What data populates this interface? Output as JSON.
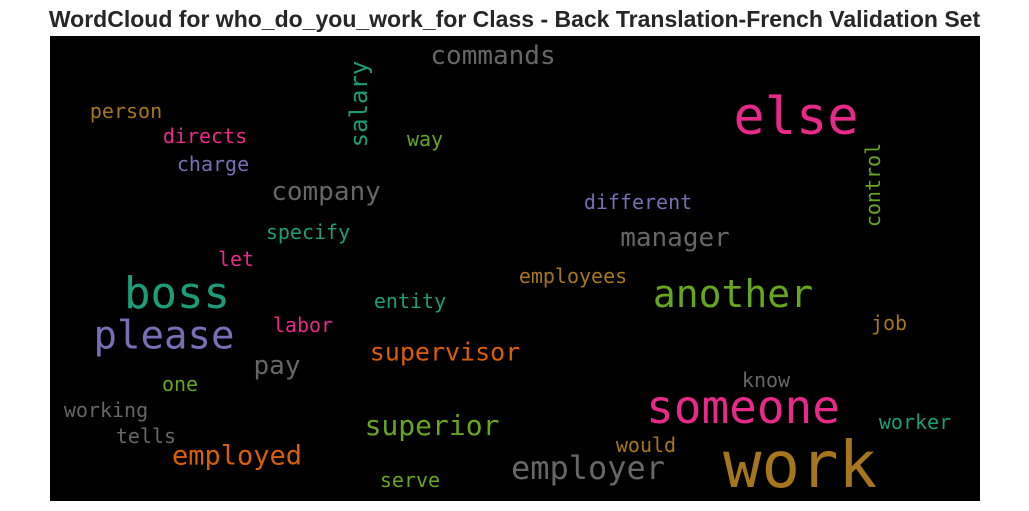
{
  "title": "WordCloud for who_do_you_work_for Class - Back Translation-French Validation Set",
  "colors": {
    "gray": "#666666",
    "pink": "#e7298a",
    "green": "#66a61e",
    "teal": "#1b9e77",
    "orange": "#d95f02",
    "purple": "#7570b3",
    "gold": "#a6761d"
  },
  "words": [
    {
      "text": "work",
      "color": "#a6761d"
    },
    {
      "text": "someone",
      "color": "#e7298a"
    },
    {
      "text": "else",
      "color": "#e7298a"
    },
    {
      "text": "boss",
      "color": "#1b9e77"
    },
    {
      "text": "please",
      "color": "#7570b3"
    },
    {
      "text": "another",
      "color": "#66a61e"
    },
    {
      "text": "employer",
      "color": "#666666"
    },
    {
      "text": "commands",
      "color": "#666666"
    },
    {
      "text": "company",
      "color": "#666666"
    },
    {
      "text": "manager",
      "color": "#666666"
    },
    {
      "text": "supervisor",
      "color": "#d95f02"
    },
    {
      "text": "superior",
      "color": "#66a61e"
    },
    {
      "text": "employed",
      "color": "#d95f02"
    },
    {
      "text": "salary",
      "color": "#1b9e77"
    },
    {
      "text": "pay",
      "color": "#666666"
    },
    {
      "text": "person",
      "color": "#a6761d"
    },
    {
      "text": "directs",
      "color": "#e7298a"
    },
    {
      "text": "charge",
      "color": "#7570b3"
    },
    {
      "text": "way",
      "color": "#66a61e"
    },
    {
      "text": "different",
      "color": "#7570b3"
    },
    {
      "text": "control",
      "color": "#66a61e"
    },
    {
      "text": "specify",
      "color": "#1b9e77"
    },
    {
      "text": "let",
      "color": "#e7298a"
    },
    {
      "text": "employees",
      "color": "#a6761d"
    },
    {
      "text": "entity",
      "color": "#1b9e77"
    },
    {
      "text": "labor",
      "color": "#e7298a"
    },
    {
      "text": "job",
      "color": "#a6761d"
    },
    {
      "text": "one",
      "color": "#66a61e"
    },
    {
      "text": "know",
      "color": "#666666"
    },
    {
      "text": "working",
      "color": "#666666"
    },
    {
      "text": "tells",
      "color": "#666666"
    },
    {
      "text": "worker",
      "color": "#1b9e77"
    },
    {
      "text": "would",
      "color": "#a6761d"
    },
    {
      "text": "serve",
      "color": "#66a61e"
    }
  ]
}
